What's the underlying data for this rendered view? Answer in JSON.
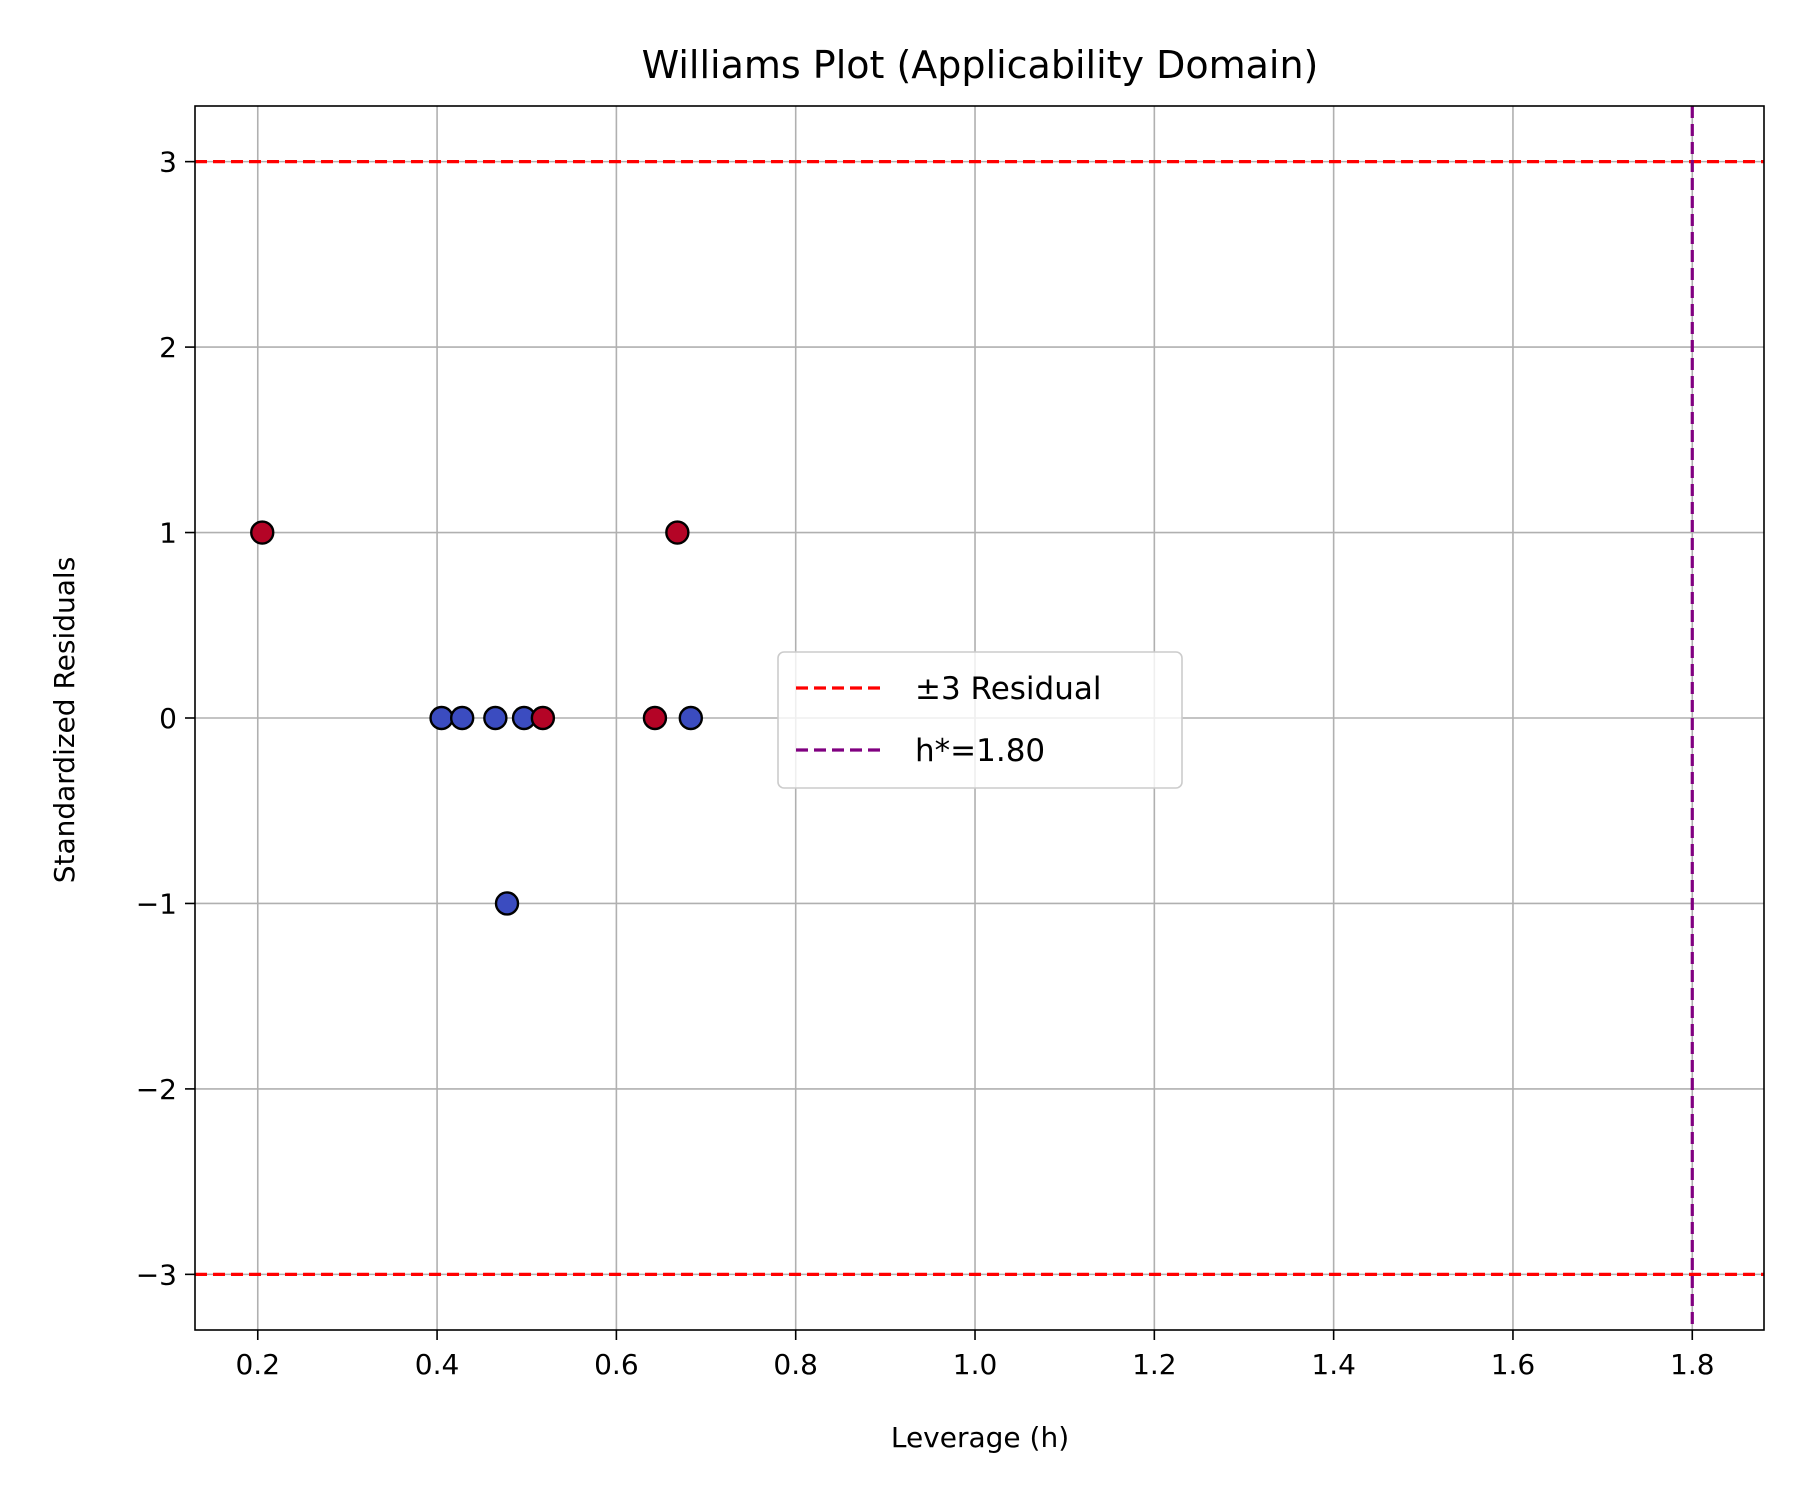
{
  "chart_data": {
    "type": "scatter",
    "title": "Williams Plot (Applicability Domain)",
    "xlabel": "Leverage (h)",
    "ylabel": "Standardized Residuals",
    "xlim": [
      0.13,
      1.88
    ],
    "ylim": [
      -3.3,
      3.3
    ],
    "xticks": [
      0.2,
      0.4,
      0.6,
      0.8,
      1.0,
      1.2,
      1.4,
      1.6,
      1.8
    ],
    "xtick_labels": [
      "0.2",
      "0.4",
      "0.6",
      "0.8",
      "1.0",
      "1.2",
      "1.4",
      "1.6",
      "1.8"
    ],
    "yticks": [
      -3,
      -2,
      -1,
      0,
      1,
      2,
      3
    ],
    "ytick_labels": [
      "−3",
      "−2",
      "−1",
      "0",
      "1",
      "2",
      "3"
    ],
    "grid": true,
    "legend_position": "center",
    "points": [
      {
        "x": 0.205,
        "y": 1,
        "color": "#b40426"
      },
      {
        "x": 0.405,
        "y": 0,
        "color": "#3b4cc0"
      },
      {
        "x": 0.428,
        "y": 0,
        "color": "#3b4cc0"
      },
      {
        "x": 0.465,
        "y": 0,
        "color": "#3b4cc0"
      },
      {
        "x": 0.478,
        "y": -1,
        "color": "#3b4cc0"
      },
      {
        "x": 0.497,
        "y": 0,
        "color": "#3b4cc0"
      },
      {
        "x": 0.518,
        "y": 0,
        "color": "#b40426"
      },
      {
        "x": 0.643,
        "y": 0,
        "color": "#b40426"
      },
      {
        "x": 0.668,
        "y": 1,
        "color": "#b40426"
      },
      {
        "x": 0.683,
        "y": 0,
        "color": "#3b4cc0"
      }
    ],
    "reference_lines": [
      {
        "orientation": "horizontal",
        "value": 3,
        "color": "#ff0000",
        "style": "dashed",
        "legend": "±3 Residual"
      },
      {
        "orientation": "horizontal",
        "value": -3,
        "color": "#ff0000",
        "style": "dashed"
      },
      {
        "orientation": "vertical",
        "value": 1.8,
        "color": "#800080",
        "style": "dashed",
        "legend": "h*=1.80"
      }
    ],
    "legend": [
      {
        "label": "±3 Residual",
        "color": "#ff0000"
      },
      {
        "label": "h*=1.80",
        "color": "#800080"
      }
    ]
  }
}
